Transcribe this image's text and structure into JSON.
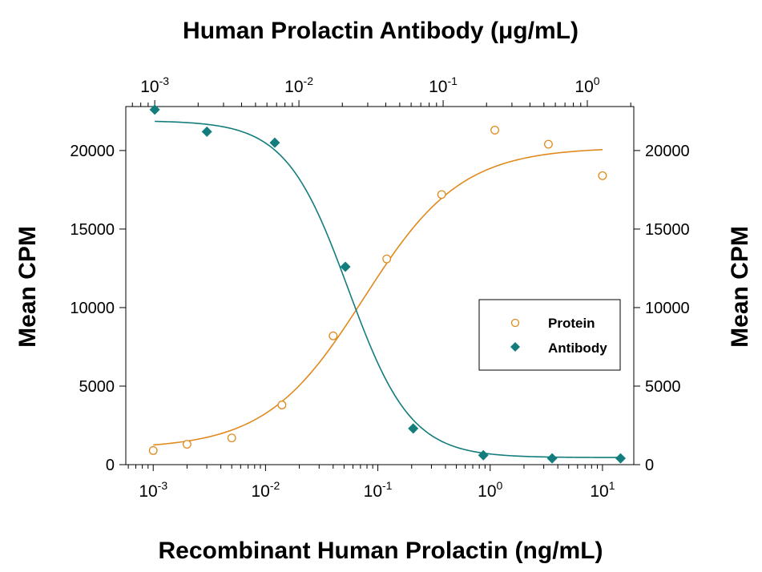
{
  "chart_data": {
    "type": "scatter",
    "title": "Human Prolactin Antibody (μg/mL)",
    "xlabel": "Recombinant Human Prolactin (ng/mL)",
    "ylabel": "Mean CPM",
    "ylabel_right": "Mean CPM",
    "x_scale": "log",
    "x_bottom_ticks": [
      {
        "base": "10",
        "exp": "-3",
        "value": 0.001
      },
      {
        "base": "10",
        "exp": "-2",
        "value": 0.01
      },
      {
        "base": "10",
        "exp": "-1",
        "value": 0.1
      },
      {
        "base": "10",
        "exp": "0",
        "value": 1
      },
      {
        "base": "10",
        "exp": "1",
        "value": 10
      }
    ],
    "x_top_ticks": [
      {
        "base": "10",
        "exp": "-3",
        "value": 0.001
      },
      {
        "base": "10",
        "exp": "-2",
        "value": 0.01
      },
      {
        "base": "10",
        "exp": "-1",
        "value": 0.1
      },
      {
        "base": "10",
        "exp": "0",
        "value": 1
      }
    ],
    "x_top_range": [
      0.00063,
      2.1
    ],
    "xlim": [
      0.00057,
      19
    ],
    "ylim": [
      0,
      22800
    ],
    "y_ticks": [
      "0",
      "5000",
      "10000",
      "15000",
      "20000"
    ],
    "y_tick_values": [
      0,
      5000,
      10000,
      15000,
      20000
    ],
    "legend_position": "right",
    "series": [
      {
        "name": "Protein",
        "color": "#e08a1e",
        "marker": "open-circle",
        "axis": "bottom",
        "x": [
          0.001,
          0.002,
          0.005,
          0.014,
          0.04,
          0.12,
          0.37,
          1.1,
          3.3,
          10
        ],
        "y": [
          900,
          1300,
          1700,
          3800,
          8200,
          13100,
          17200,
          21300,
          20400,
          18400
        ],
        "fit": {
          "bottom": 1000,
          "top": 20200,
          "ec50": 0.075,
          "hill": 1.0
        }
      },
      {
        "name": "Antibody",
        "color": "#137d7d",
        "marker": "filled-diamond",
        "axis": "top",
        "x": [
          0.001,
          0.0023,
          0.0068,
          0.021,
          0.062,
          0.19,
          0.57,
          1.7
        ],
        "y": [
          22600,
          21200,
          20500,
          12600,
          2300,
          600,
          400,
          400
        ],
        "fit": {
          "bottom": 450,
          "top": 21900,
          "ec50": 0.022,
          "hill": 2.0
        }
      }
    ]
  }
}
